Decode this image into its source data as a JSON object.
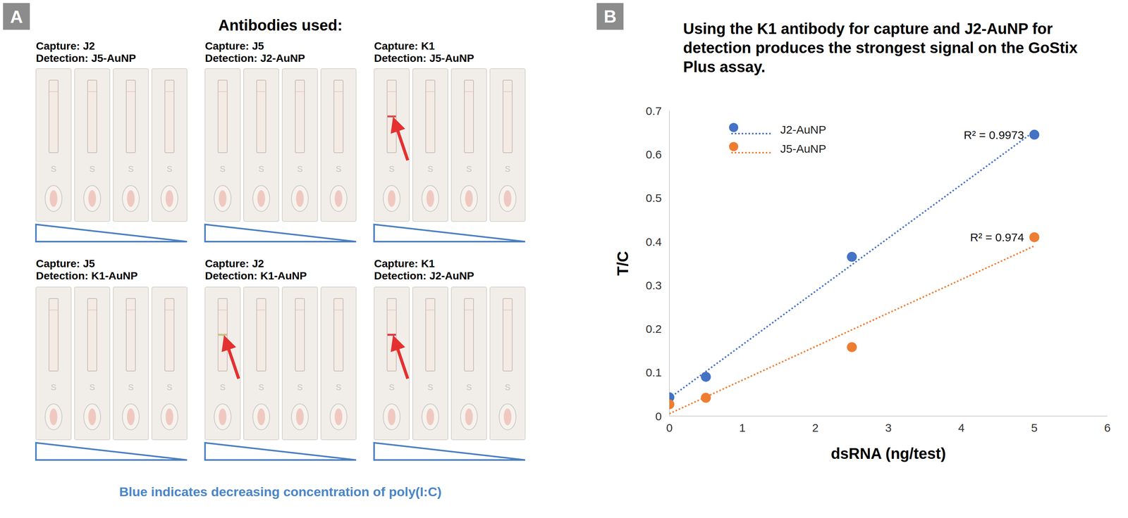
{
  "panel_a": {
    "letter": "A",
    "heading": "Antibodies used:",
    "strip_mark": "S",
    "footer": "Blue indicates decreasing concentration of poly(I:C)",
    "assays": [
      {
        "capture": "Capture: J2",
        "detection": "Detection: J5-AuNP",
        "test_line": [
          false,
          false,
          false,
          false
        ],
        "arrow": false
      },
      {
        "capture": "Capture: J5",
        "detection": "Detection: J2-AuNP",
        "test_line": [
          false,
          false,
          false,
          false
        ],
        "arrow": false
      },
      {
        "capture": "Capture: K1",
        "detection": "Detection: J5-AuNP",
        "test_line": [
          true,
          false,
          false,
          false
        ],
        "arrow": true,
        "color": "#d94a4a"
      },
      {
        "capture": "Capture: J5",
        "detection": "Detection: K1-AuNP",
        "test_line": [
          false,
          false,
          false,
          false
        ],
        "arrow": false
      },
      {
        "capture": "Capture: J2",
        "detection": "Detection: K1-AuNP",
        "test_line": [
          true,
          false,
          false,
          false
        ],
        "arrow": true,
        "color": "#c9c27a"
      },
      {
        "capture": "Capture: K1",
        "detection": "Detection: J2-AuNP",
        "test_line": [
          true,
          false,
          false,
          false
        ],
        "arrow": true,
        "color": "#e0303a"
      }
    ]
  },
  "panel_b": {
    "letter": "B"
  },
  "chart_data": {
    "type": "scatter",
    "title": "Using the K1 antibody for capture and J2-AuNP for detection produces the strongest signal on the GoStix Plus assay.",
    "x_label": "dsRNA (ng/test)",
    "y_label": "T/C",
    "xlim": [
      0,
      6
    ],
    "xticks": [
      0,
      1,
      2,
      3,
      4,
      5,
      6
    ],
    "ylim": [
      0,
      0.7
    ],
    "yticks": [
      0,
      0.1,
      0.2,
      0.3,
      0.4,
      0.5,
      0.6,
      0.7
    ],
    "grid": false,
    "legend": "upper left",
    "x": [
      0,
      0.5,
      2.5,
      5
    ],
    "series": [
      {
        "name": "J2-AuNP",
        "color": "#4472c4",
        "marker": "circle",
        "line_style": "dotted",
        "values": [
          0.043,
          0.09,
          0.365,
          0.645
        ],
        "annotation": "R² = 0.9973"
      },
      {
        "name": "J5-AuNP",
        "color": "#ed7d31",
        "marker": "circle",
        "line_style": "dotted",
        "values": [
          0.027,
          0.042,
          0.158,
          0.41
        ],
        "annotation": "R² = 0.974"
      }
    ]
  }
}
